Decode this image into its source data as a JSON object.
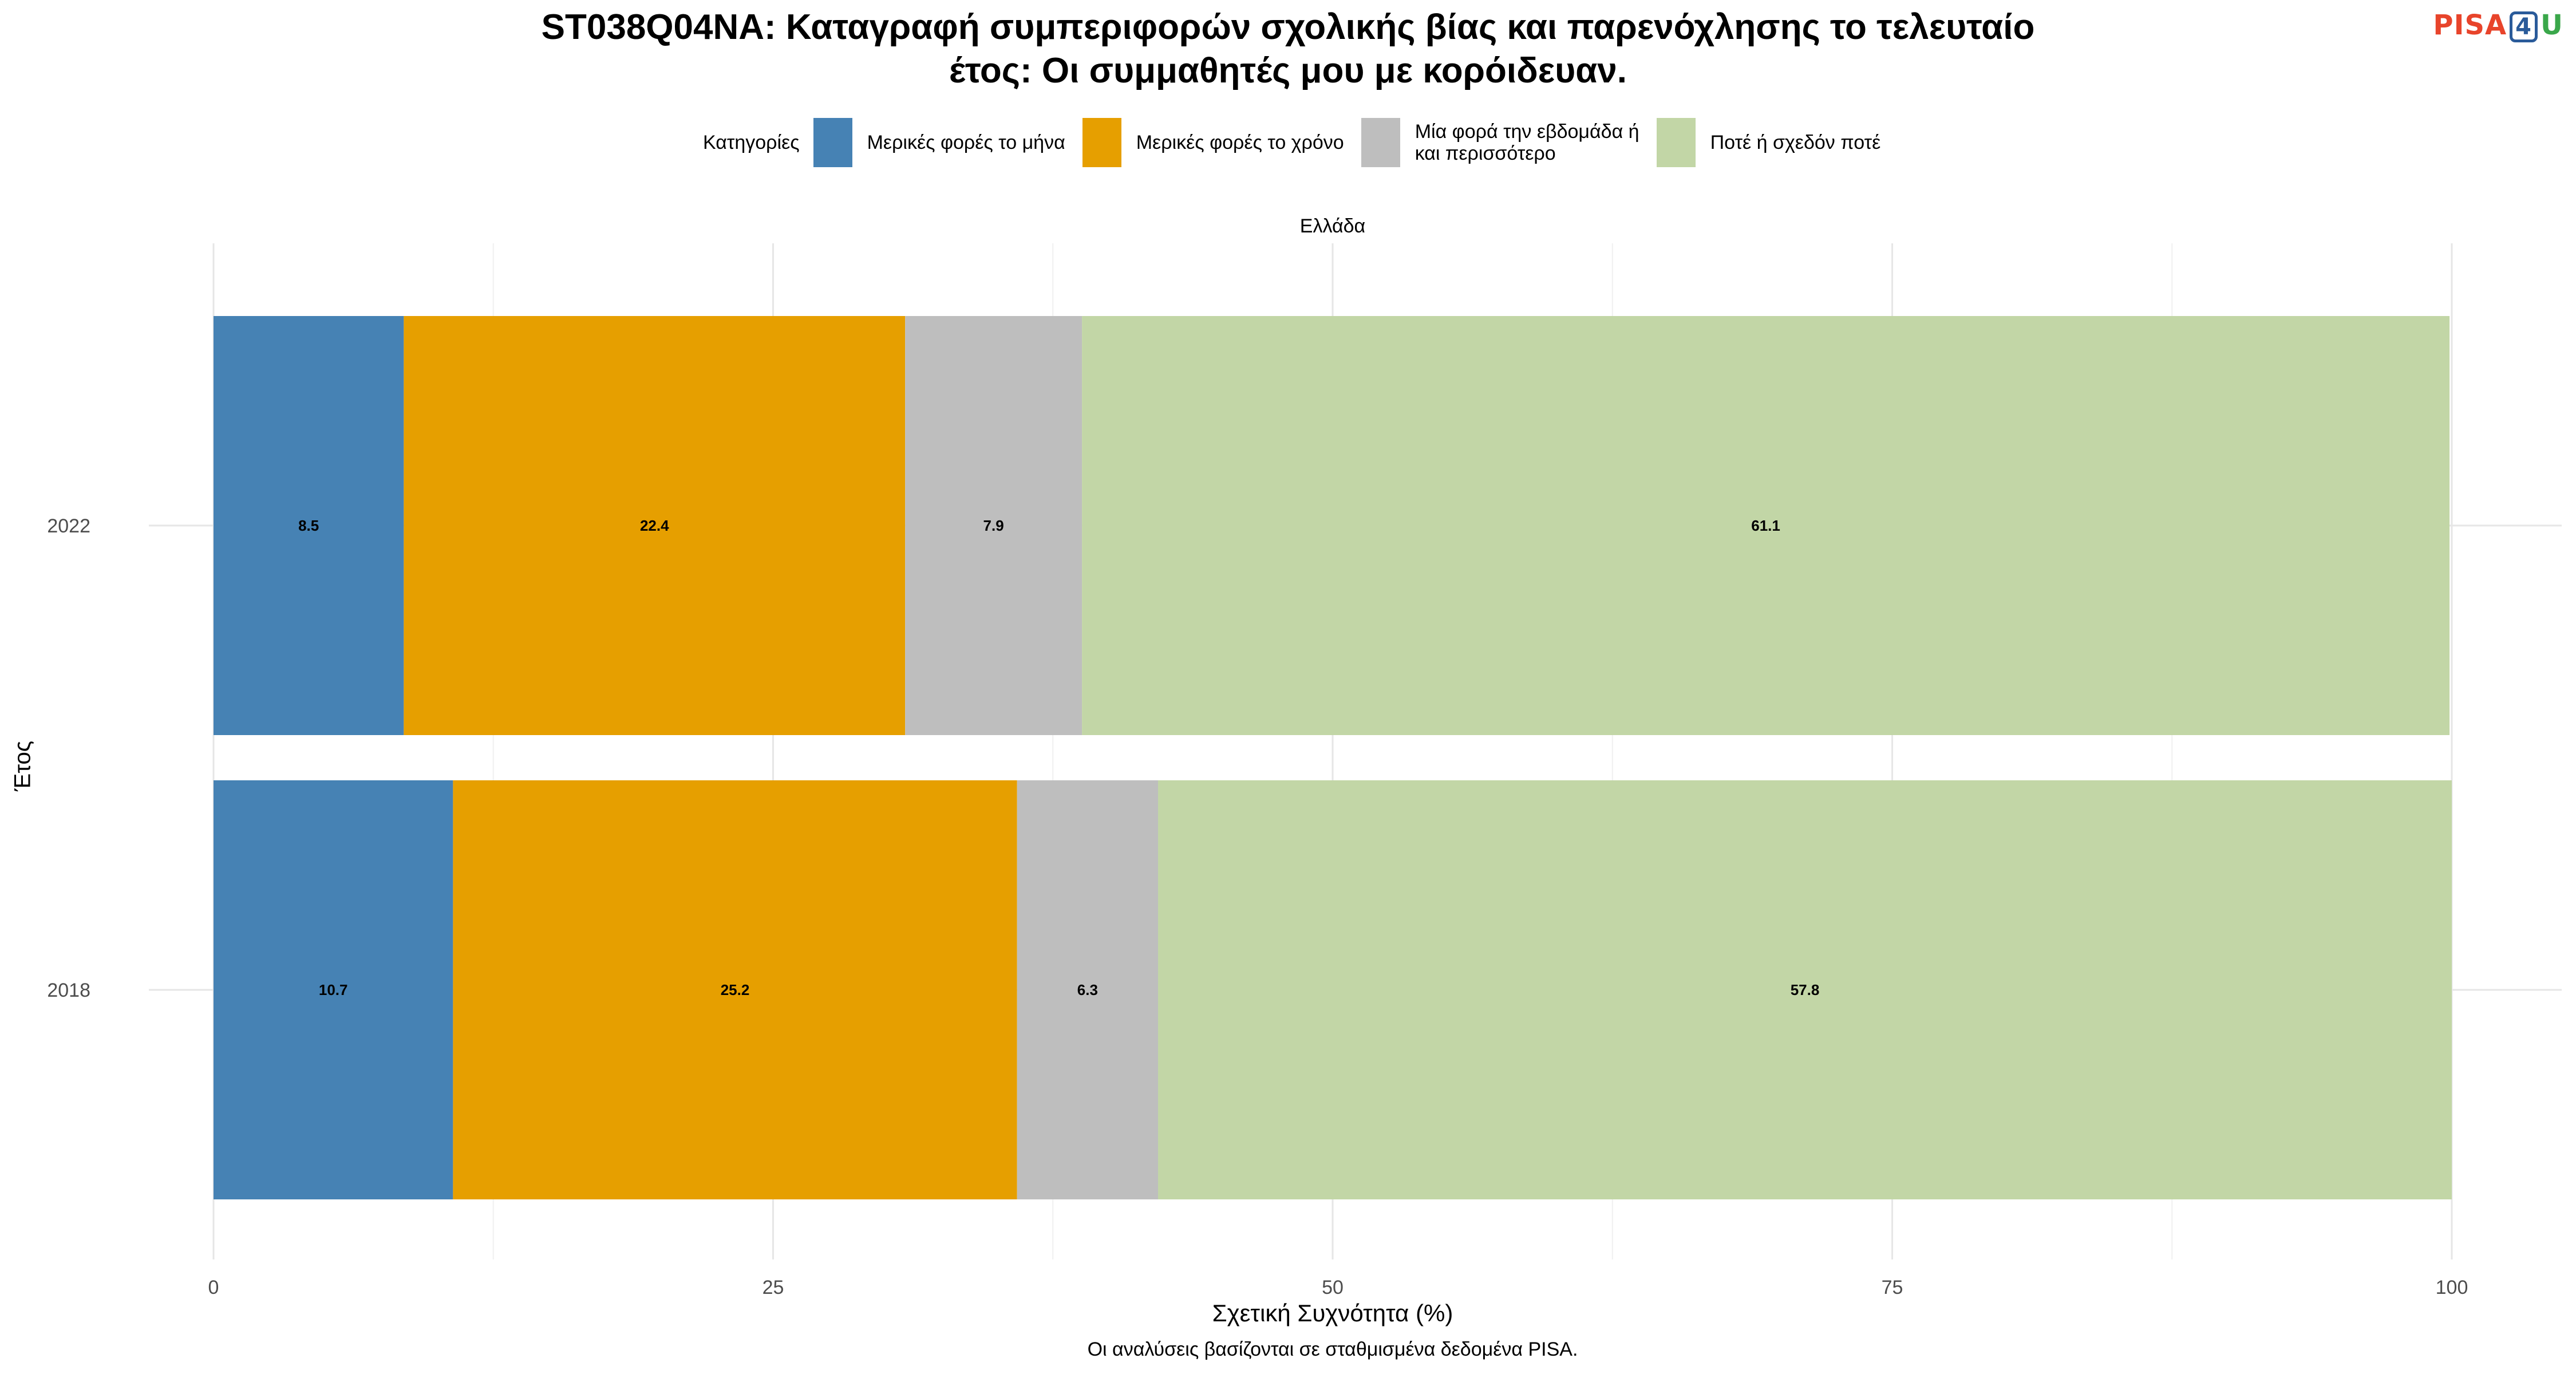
{
  "title_line1": "ST038Q04NA: Καταγραφή συμπεριφορών σχολικής βίας και παρενόχλησης το τελευταίο",
  "title_line2": "έτος: Οι συμμαθητές μου με κορόιδευαν.",
  "logo": {
    "pisa": "PISA",
    "four": "4",
    "u": "U"
  },
  "legend": {
    "title": "Κατηγορίες",
    "items": [
      {
        "label": "Μερικές φορές το μήνα",
        "color": "#4682b4"
      },
      {
        "label": "Μερικές φορές το χρόνο",
        "color": "#e69f00"
      },
      {
        "label": "Μία φορά την εβδομάδα ή\nκαι περισσότερο",
        "color": "#bebebe"
      },
      {
        "label": "Ποτέ ή σχεδόν ποτέ",
        "color": "#c2d6a6"
      }
    ]
  },
  "facet_label": "Ελλάδα",
  "caption": "Οι αναλύσεις βασίζονται σε σταθμισμένα δεδομένα PISA.",
  "chart_data": {
    "type": "bar",
    "orientation": "horizontal",
    "stacked": true,
    "xlabel": "Σχετική Συχνότητα (%)",
    "ylabel": "Έτος",
    "xlim": [
      0,
      100
    ],
    "xticks": [
      0,
      25,
      50,
      75,
      100
    ],
    "categories": [
      "2022",
      "2018"
    ],
    "series": [
      {
        "name": "Μερικές φορές το μήνα",
        "color": "#4682b4",
        "values": [
          8.5,
          10.7
        ]
      },
      {
        "name": "Μερικές φορές το χρόνο",
        "color": "#e69f00",
        "values": [
          22.4,
          25.2
        ]
      },
      {
        "name": "Μία φορά την εβδομάδα ή και περισσότερο",
        "color": "#bebebe",
        "values": [
          7.9,
          6.3
        ]
      },
      {
        "name": "Ποτέ ή σχεδόν ποτέ",
        "color": "#c2d6a6",
        "values": [
          61.1,
          57.8
        ]
      }
    ],
    "grid": true,
    "legend_position": "top"
  }
}
